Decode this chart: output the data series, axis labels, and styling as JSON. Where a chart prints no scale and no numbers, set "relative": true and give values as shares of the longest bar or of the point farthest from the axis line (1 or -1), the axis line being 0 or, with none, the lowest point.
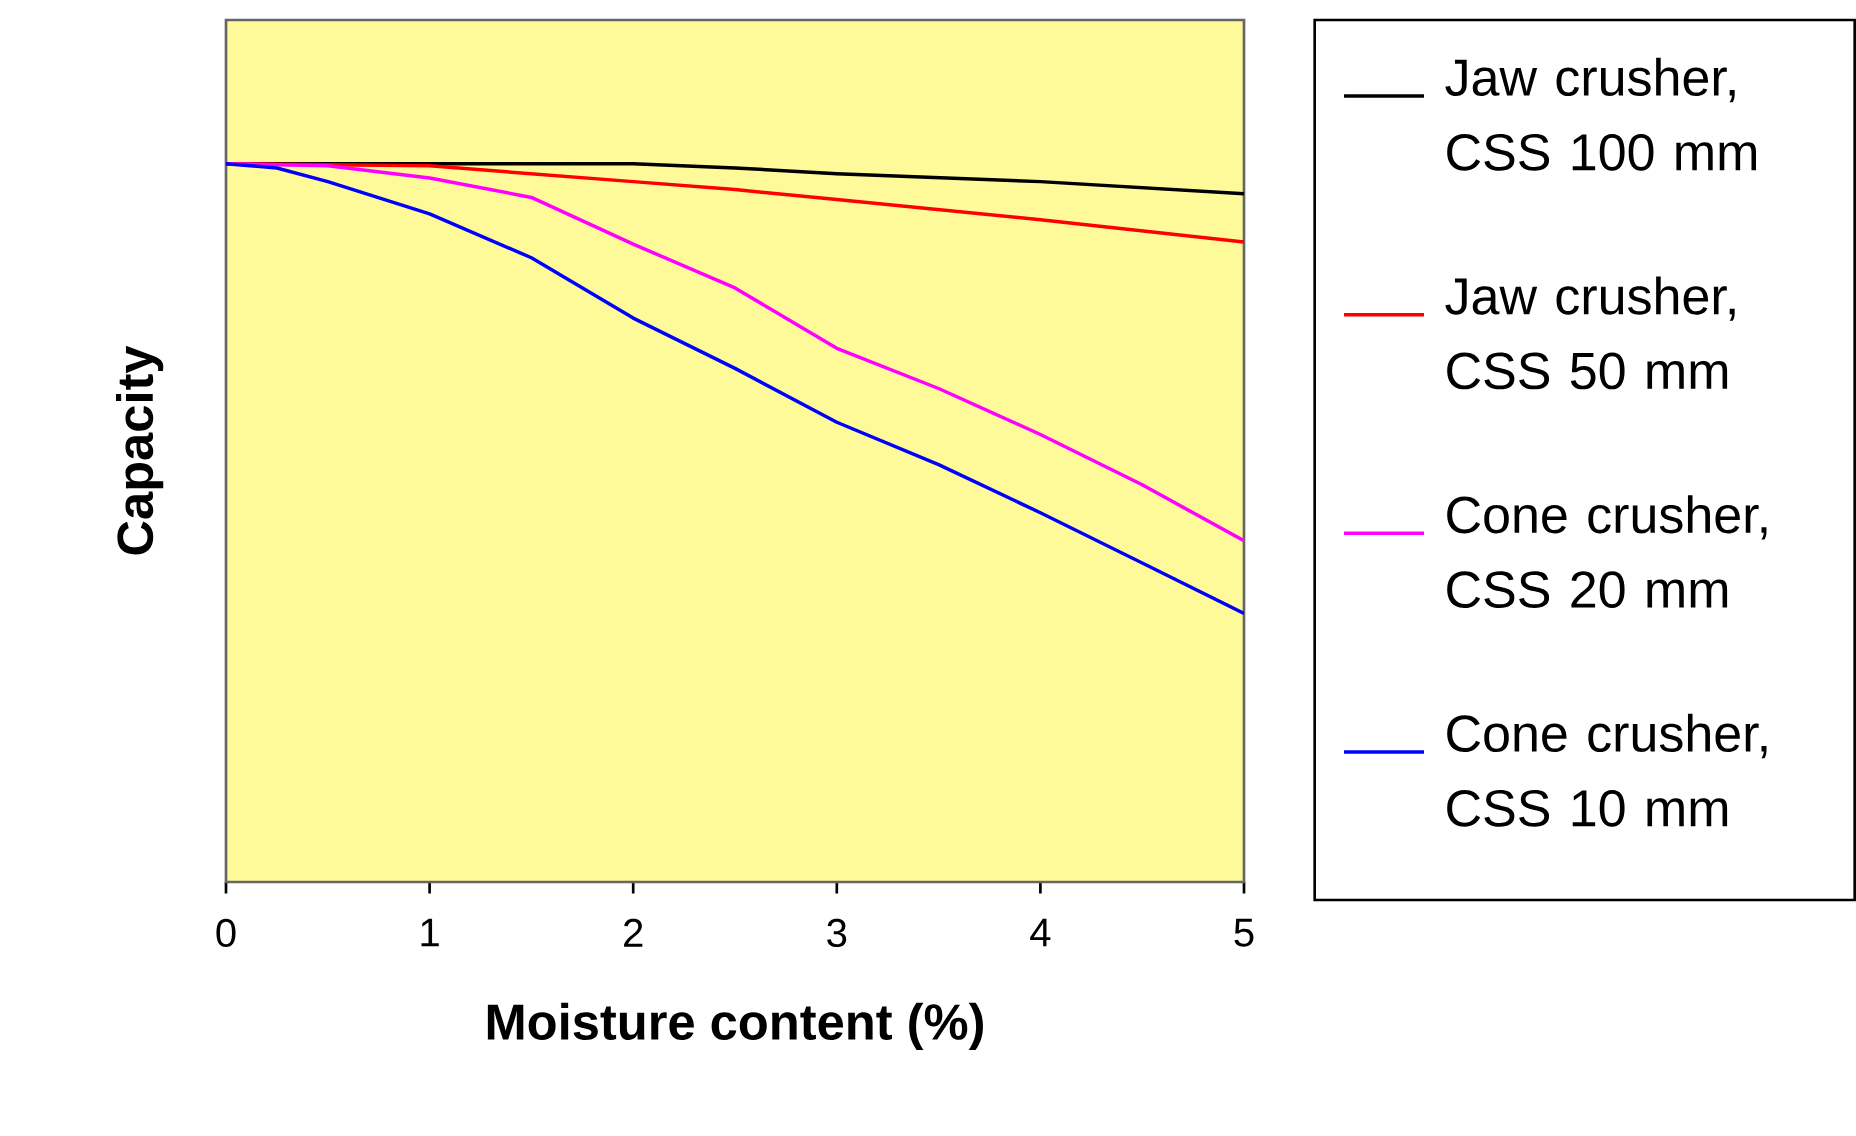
{
  "chart_data": {
    "type": "line",
    "relative": true,
    "xlabel": "Moisture content (%)",
    "ylabel": "Capacity",
    "xlim": [
      0,
      5
    ],
    "xticks": [
      0,
      1,
      2,
      3,
      4,
      5
    ],
    "legend": "right",
    "grid": false,
    "marker": "none",
    "line_style": "solid",
    "series": [
      {
        "name": "Jaw crusher, CSS 100 mm",
        "color": "#000000",
        "x": [
          0,
          1,
          2,
          2.5,
          3,
          4,
          5
        ],
        "values": [
          1.0,
          1.0,
          1.0,
          0.994,
          0.986,
          0.975,
          0.958
        ]
      },
      {
        "name": "Jaw crusher, CSS 50 mm",
        "color": "#ff0000",
        "x": [
          0,
          1,
          1.5,
          2,
          2.5,
          3,
          4,
          5
        ],
        "values": [
          1.0,
          0.997,
          0.986,
          0.975,
          0.964,
          0.95,
          0.922,
          0.891
        ]
      },
      {
        "name": "Cone crusher, CSS 20 mm",
        "color": "#ff00ff",
        "x": [
          0,
          0.5,
          1,
          1.5,
          2,
          2.5,
          3,
          3.5,
          4,
          4.5,
          5
        ],
        "values": [
          1.0,
          0.997,
          0.98,
          0.953,
          0.888,
          0.827,
          0.743,
          0.687,
          0.623,
          0.553,
          0.475
        ]
      },
      {
        "name": "Cone crusher, CSS 10 mm",
        "color": "#0000ff",
        "x": [
          0,
          0.25,
          0.5,
          1,
          1.5,
          2,
          2.5,
          3,
          3.5,
          4,
          4.5,
          5
        ],
        "values": [
          1.0,
          0.994,
          0.975,
          0.93,
          0.869,
          0.785,
          0.715,
          0.64,
          0.581,
          0.514,
          0.444,
          0.374
        ]
      }
    ]
  }
}
